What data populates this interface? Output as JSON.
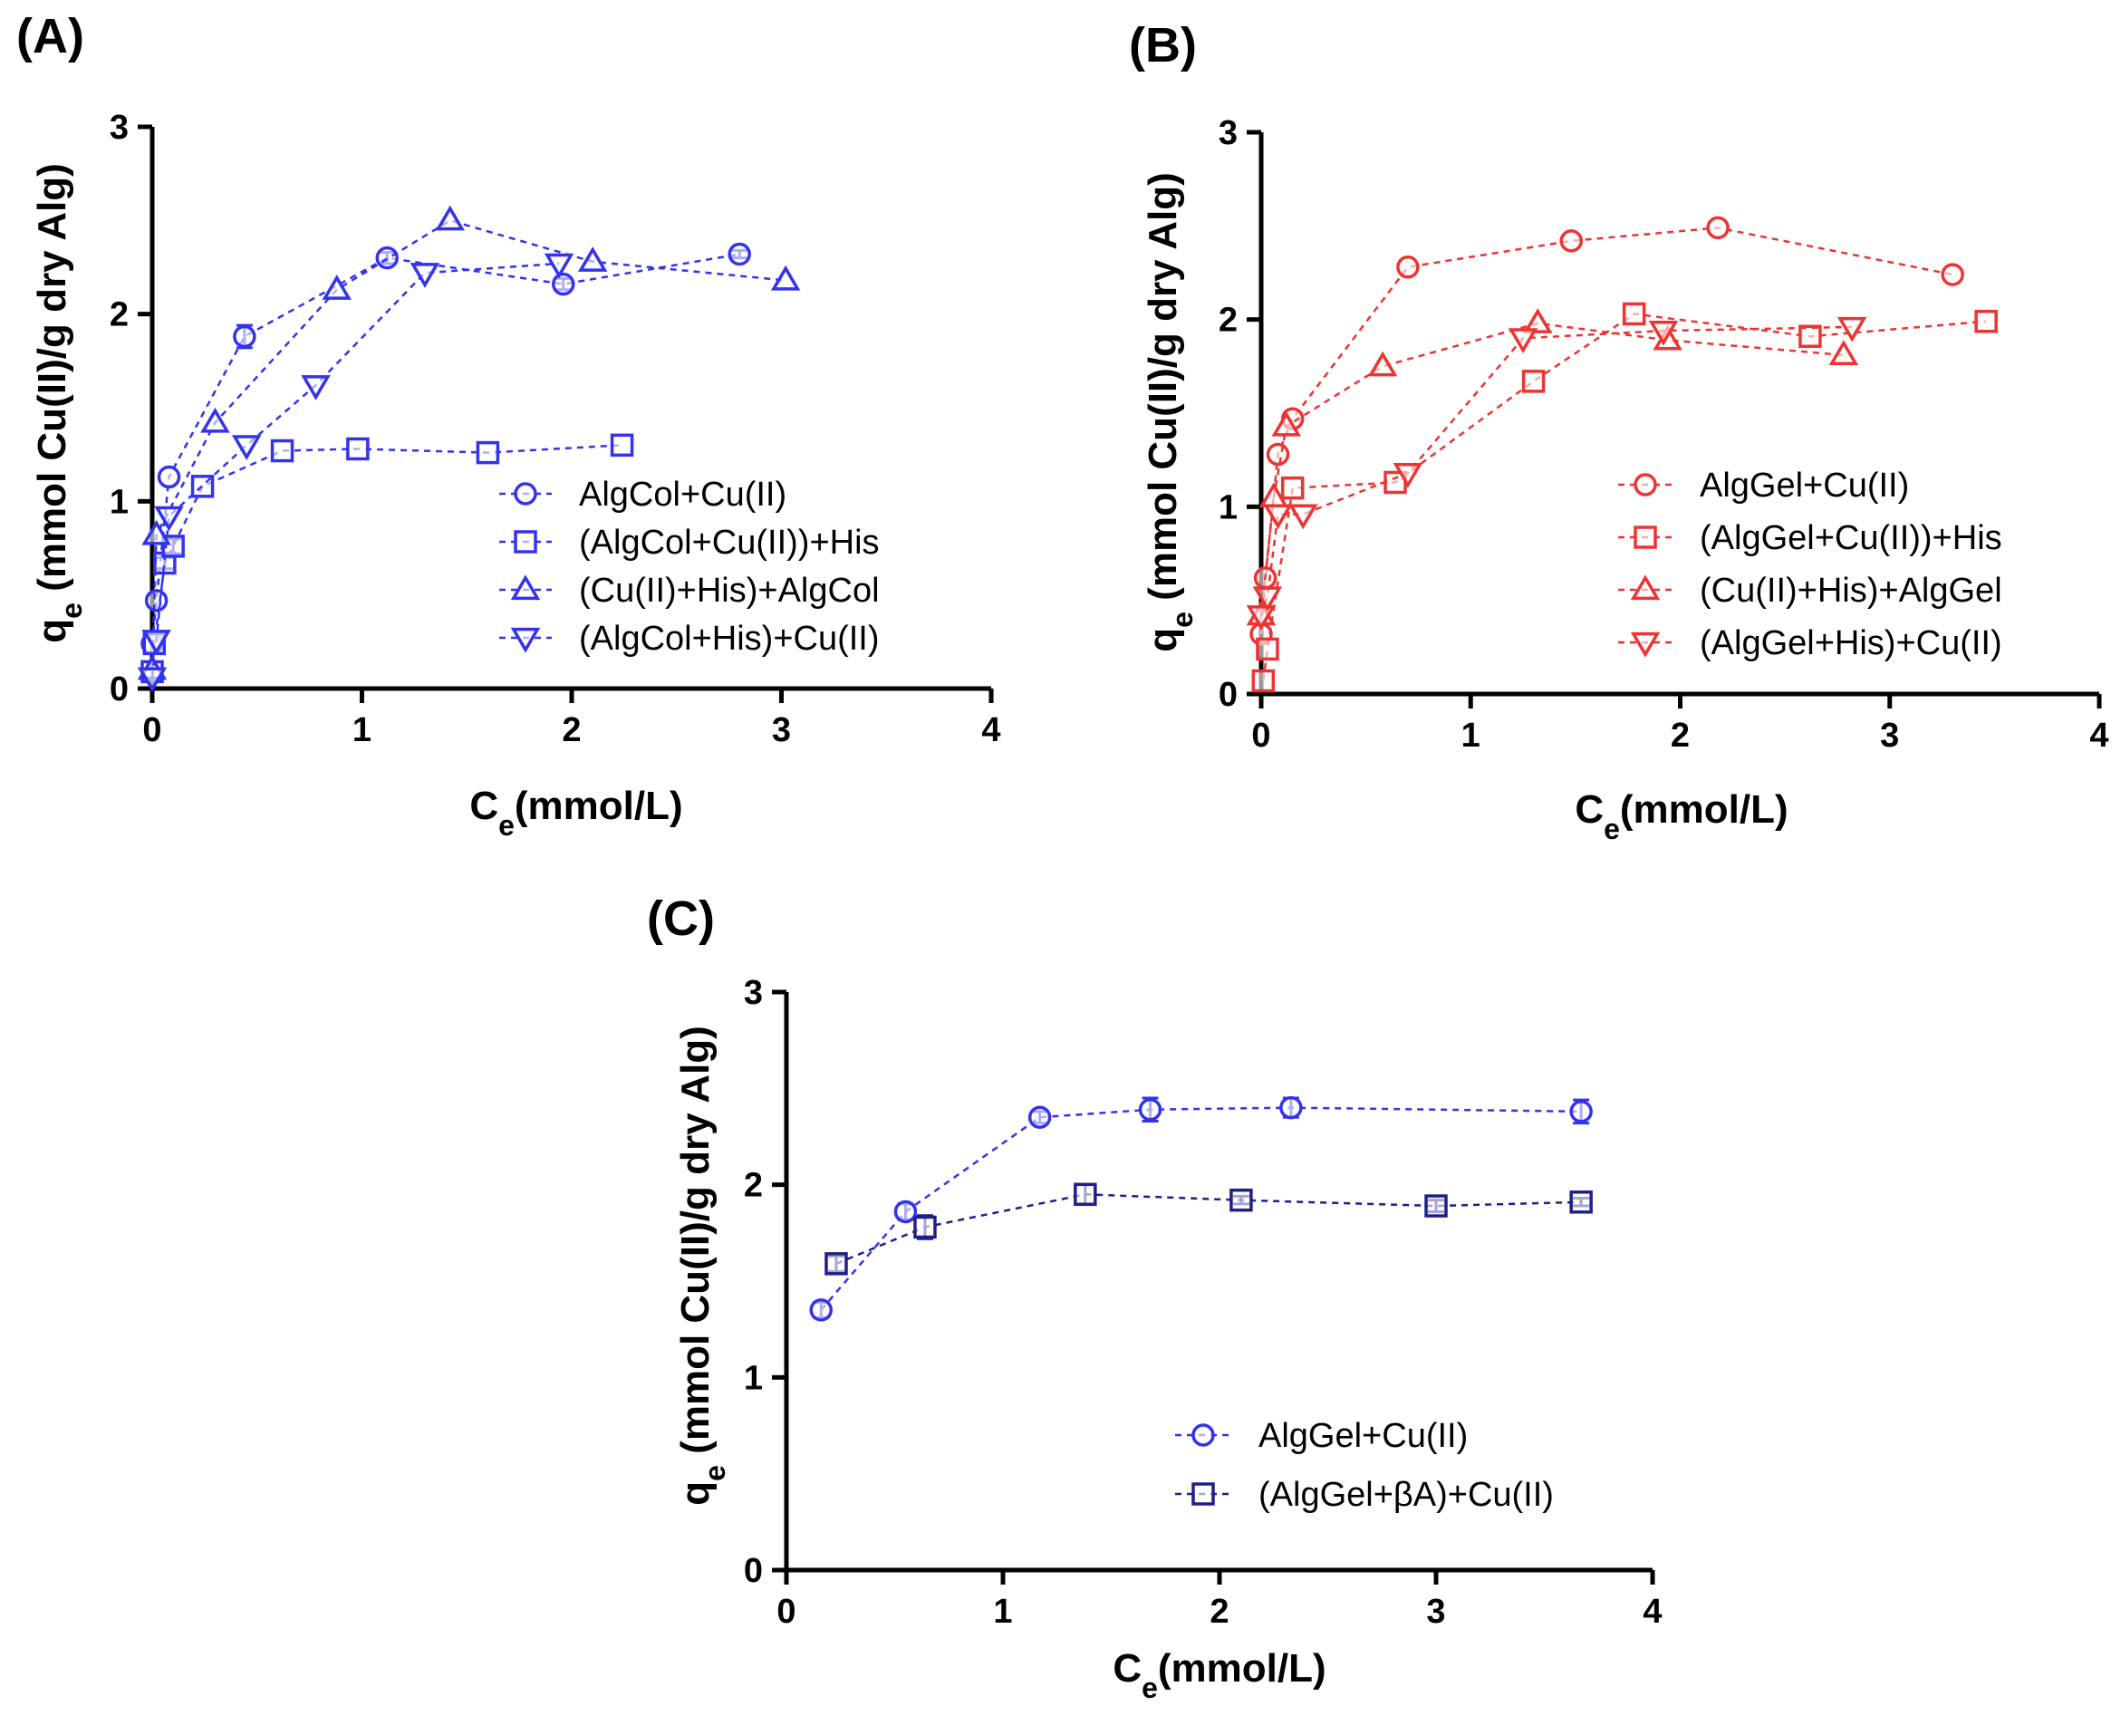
{
  "chart_data": [
    {
      "type": "scatter",
      "panel_label": "(A)",
      "xlabel": {
        "main": "C",
        "sub": "e",
        "rest": "(mmol/L)"
      },
      "ylabel": {
        "main": "q",
        "sub": "e",
        "rest": " (mmol Cu(II)/g dry Alg)"
      },
      "xlim": [
        0,
        4
      ],
      "ylim": [
        0,
        3
      ],
      "xticks": [
        "0",
        "1",
        "2",
        "3",
        "4"
      ],
      "yticks": [
        "0",
        "1",
        "2",
        "3"
      ],
      "grid": false,
      "legend_position": "bottom-right",
      "series": [
        {
          "name": "AlgCol+Cu(II)",
          "marker": "circle",
          "color": "#3333ee",
          "x": [
            0.0,
            0.02,
            0.08,
            0.44,
            1.12,
            1.96,
            2.8
          ],
          "y": [
            0.24,
            0.47,
            1.13,
            1.88,
            2.3,
            2.16,
            2.32
          ],
          "err": [
            0.0,
            0.0,
            0.0,
            0.06,
            0.03,
            0.03,
            0.02
          ]
        },
        {
          "name": "(AlgCol+Cu(II))+His",
          "marker": "square",
          "color": "#3333ee",
          "x": [
            0.0,
            0.01,
            0.06,
            0.1,
            0.24,
            0.62,
            0.98,
            1.6,
            2.24
          ],
          "y": [
            0.09,
            0.24,
            0.67,
            0.76,
            1.08,
            1.27,
            1.28,
            1.26,
            1.3
          ],
          "err": [
            0.0,
            0.0,
            0.03,
            0.04,
            0.0,
            0.0,
            0.0,
            0.0,
            0.0
          ]
        },
        {
          "name": "(Cu(II)+His)+AlgCol",
          "marker": "triangle-up",
          "color": "#3333ee",
          "x": [
            0.0,
            0.02,
            0.3,
            0.88,
            1.42,
            2.1,
            3.02
          ],
          "y": [
            0.1,
            0.82,
            1.42,
            2.13,
            2.5,
            2.28,
            2.18
          ],
          "err": [
            0.0,
            0.0,
            0.0,
            0.0,
            0.0,
            0.0,
            0.0
          ]
        },
        {
          "name": "(AlgCol+His)+Cu(II)",
          "marker": "triangle-down",
          "color": "#3333ee",
          "x": [
            0.0,
            0.02,
            0.08,
            0.45,
            0.78,
            1.3,
            1.94
          ],
          "y": [
            0.06,
            0.26,
            0.92,
            1.3,
            1.62,
            2.22,
            2.27
          ],
          "err": [
            0.0,
            0.0,
            0.0,
            0.0,
            0.0,
            0.0,
            0.0
          ]
        }
      ]
    },
    {
      "type": "scatter",
      "panel_label": "(B)",
      "xlabel": {
        "main": "C",
        "sub": "e",
        "rest": "(mmol/L)"
      },
      "ylabel": {
        "main": "q",
        "sub": "e",
        "rest": " (mmol Cu(II)/g dry Alg)"
      },
      "xlim": [
        0,
        4
      ],
      "ylim": [
        0,
        3
      ],
      "xticks": [
        "0",
        "1",
        "2",
        "3",
        "4"
      ],
      "yticks": [
        "0",
        "1",
        "2",
        "3"
      ],
      "grid": false,
      "legend_position": "bottom-right",
      "series": [
        {
          "name": "AlgGel+Cu(II)",
          "marker": "circle",
          "color": "#ee3333",
          "x": [
            0.0,
            0.02,
            0.08,
            0.15,
            0.7,
            1.48,
            2.18,
            3.3
          ],
          "y": [
            0.32,
            0.62,
            1.28,
            1.47,
            2.28,
            2.42,
            2.49,
            2.24
          ],
          "err": [
            0.0,
            0.0,
            0.0,
            0.0,
            0.0,
            0.0,
            0.0,
            0.0
          ]
        },
        {
          "name": "(AlgGel+Cu(II))+His",
          "marker": "square",
          "color": "#ee3333",
          "x": [
            0.01,
            0.03,
            0.15,
            0.64,
            1.3,
            1.78,
            2.62,
            3.46
          ],
          "y": [
            0.07,
            0.24,
            1.1,
            1.13,
            1.67,
            2.03,
            1.91,
            1.99
          ],
          "err": [
            0.0,
            0.0,
            0.0,
            0.0,
            0.0,
            0.0,
            0.0,
            0.0
          ]
        },
        {
          "name": "(Cu(II)+His)+AlgGel",
          "marker": "triangle-up",
          "color": "#ee3333",
          "x": [
            0.0,
            0.06,
            0.12,
            0.58,
            1.32,
            1.94,
            2.78
          ],
          "y": [
            0.42,
            1.05,
            1.43,
            1.75,
            1.98,
            1.89,
            1.81
          ],
          "err": [
            0.0,
            0.0,
            0.0,
            0.0,
            0.0,
            0.0,
            0.0
          ]
        },
        {
          "name": "(AlgGel+His)+Cu(II)",
          "marker": "triangle-down",
          "color": "#ee3333",
          "x": [
            0.0,
            0.03,
            0.08,
            0.2,
            0.7,
            1.25,
            1.92,
            2.82
          ],
          "y": [
            0.42,
            0.52,
            0.96,
            0.96,
            1.18,
            1.9,
            1.94,
            1.96
          ],
          "err": [
            0.0,
            0.0,
            0.0,
            0.0,
            0.0,
            0.0,
            0.0,
            0.0
          ]
        }
      ]
    },
    {
      "type": "scatter",
      "panel_label": "(C)",
      "xlabel": {
        "main": "C",
        "sub": "e",
        "rest": "(mmol/L)"
      },
      "ylabel": {
        "main": "q",
        "sub": "e",
        "rest": " (mmol Cu(II)/g dry Alg)"
      },
      "xlim": [
        0,
        4
      ],
      "ylim": [
        0,
        3
      ],
      "xticks": [
        "0",
        "1",
        "2",
        "3",
        "4"
      ],
      "yticks": [
        "0",
        "1",
        "2",
        "3"
      ],
      "grid": false,
      "legend_position": "bottom-right",
      "series": [
        {
          "name": "AlgGel+Cu(II)",
          "marker": "circle",
          "color": "#3333ee",
          "x": [
            0.16,
            0.55,
            1.17,
            1.68,
            2.33,
            3.67
          ],
          "y": [
            1.35,
            1.86,
            2.35,
            2.39,
            2.4,
            2.38
          ],
          "err": [
            0.04,
            0.04,
            0.03,
            0.06,
            0.05,
            0.06
          ]
        },
        {
          "name": "(AlgGel+βA)+Cu(II)",
          "marker": "square",
          "color": "#1f1f8a",
          "x": [
            0.23,
            0.64,
            1.38,
            2.1,
            3.0,
            3.67
          ],
          "y": [
            1.59,
            1.78,
            1.95,
            1.92,
            1.89,
            1.91
          ],
          "err": [
            0.04,
            0.06,
            0.05,
            0.02,
            0.03,
            0.02
          ]
        }
      ]
    }
  ]
}
